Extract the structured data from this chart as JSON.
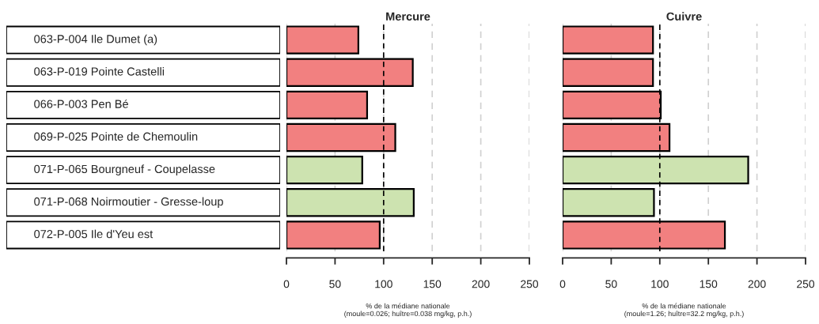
{
  "chart_data": [
    {
      "type": "bar",
      "orientation": "horizontal",
      "title": "Mercure",
      "xlabel": "% de la médiane nationale\n(moule=0.026; huître=0.038 mg/kg, p.h.)",
      "categories": [
        "063-P-004 Ile Dumet (a)",
        "063-P-019 Pointe Castelli",
        "066-P-003 Pen Bé",
        "069-P-025 Pointe de Chemoulin",
        "071-P-065 Bourgneuf - Coupelasse",
        "071-P-068 Noirmoutier - Gresse-loup",
        "072-P-005 Ile d'Yeu est"
      ],
      "values": [
        74,
        130,
        83,
        112,
        78,
        131,
        96
      ],
      "colors": [
        "#f28080",
        "#f28080",
        "#f28080",
        "#f28080",
        "#cde3b0",
        "#cde3b0",
        "#f28080"
      ],
      "xlim": [
        0,
        250
      ],
      "xticks": [
        0,
        50,
        100,
        150,
        200,
        250
      ],
      "grid": "x",
      "ref_lines": [
        {
          "axis": "x",
          "value": 100,
          "color": "#000000",
          "line_style": "dashed"
        }
      ]
    },
    {
      "type": "bar",
      "orientation": "horizontal",
      "title": "Cuivre",
      "xlabel": "% de la médiane nationale\n(moule=1.26; huître=32.2 mg/kg, p.h.)",
      "categories": [
        null,
        null,
        null,
        null,
        null,
        null,
        null
      ],
      "values": [
        93,
        93,
        101,
        110,
        191,
        94,
        167
      ],
      "colors": [
        "#f28080",
        "#f28080",
        "#f28080",
        "#f28080",
        "#cde3b0",
        "#cde3b0",
        "#f28080"
      ],
      "xlim": [
        0,
        250
      ],
      "xticks": [
        0,
        50,
        100,
        150,
        200,
        250
      ],
      "grid": "x",
      "tick_labels": "x",
      "ref_lines": [
        {
          "axis": "x",
          "value": 100,
          "color": "#000000",
          "line_style": "dashed"
        }
      ]
    }
  ]
}
